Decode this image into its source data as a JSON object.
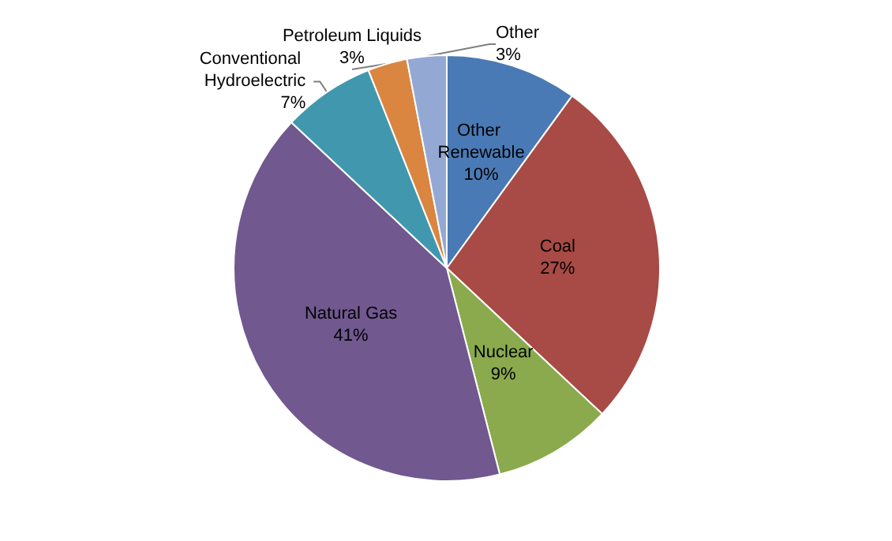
{
  "chart_data": {
    "type": "pie",
    "categories": [
      "Other Renewable",
      "Coal",
      "Nuclear",
      "Natural Gas",
      "Conventional Hydroelectric",
      "Petroleum Liquids",
      "Other"
    ],
    "values": [
      10,
      27,
      9,
      41,
      7,
      3,
      3
    ],
    "colors": [
      "#4a7ab5",
      "#a84a45",
      "#8aaa4d",
      "#71588f",
      "#4198ae",
      "#da8540",
      "#93a9d4"
    ],
    "value_labels": [
      "10%",
      "27%",
      "9%",
      "41%",
      "7%",
      "3%",
      "3%"
    ],
    "legend": false
  }
}
